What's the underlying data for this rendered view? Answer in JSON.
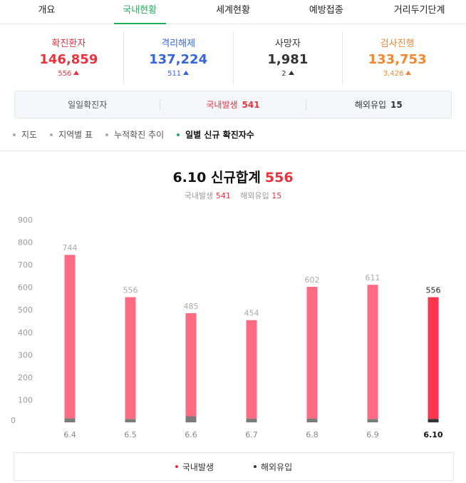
{
  "tabs": [
    {
      "label": "개요"
    },
    {
      "label": "국내현황"
    },
    {
      "label": "세계현황"
    },
    {
      "label": "예방접종"
    },
    {
      "label": "거리두기단계"
    }
  ],
  "stats": [
    {
      "label": "확진환자",
      "value": "146,859",
      "change": "556",
      "color": "#e8333f"
    },
    {
      "label": "격리해제",
      "value": "137,224",
      "change": "511",
      "color": "#3565dc"
    },
    {
      "label": "사망자",
      "value": "1,981",
      "change": "2",
      "color": "#333333"
    },
    {
      "label": "검사진행",
      "value": "133,753",
      "change": "3,426",
      "color": "#f4872c"
    }
  ],
  "daily": {
    "label": "일일확진자",
    "domestic_label": "국내발생",
    "domestic_value": "541",
    "overseas_label": "해외유입",
    "overseas_value": "15"
  },
  "views": [
    {
      "label": "지도"
    },
    {
      "label": "지역별 표"
    },
    {
      "label": "누적확진 추이"
    },
    {
      "label": "일별 신규 확진자수"
    }
  ],
  "headline": {
    "date_title": "6.10 신규합계",
    "sum": "556",
    "domestic_label": "국내발생",
    "domestic_value": "541",
    "overseas_label": "해외유입",
    "overseas_value": "15"
  },
  "colors": {
    "domestic": "#ff6b82",
    "domestic_highlight": "#ff354f",
    "overseas": "#7b7b7b",
    "overseas_highlight": "#333333"
  },
  "chart_data": {
    "type": "bar",
    "stacked": true,
    "categories": [
      "6.4",
      "6.5",
      "6.6",
      "6.7",
      "6.8",
      "6.9",
      "6.10"
    ],
    "series": [
      {
        "name": "국내발생",
        "values": [
          726,
          541,
          458,
          437,
          585,
          596,
          541
        ]
      },
      {
        "name": "해외유입",
        "values": [
          18,
          15,
          27,
          17,
          17,
          15,
          15
        ]
      }
    ],
    "totals": [
      744,
      556,
      485,
      454,
      602,
      611,
      556
    ],
    "y_ticks": [
      0,
      100,
      200,
      300,
      400,
      500,
      600,
      700,
      800,
      900
    ],
    "ylim": [
      0,
      900
    ],
    "highlight_index": 6,
    "grid": false,
    "legend_position": "bottom"
  },
  "legend": [
    {
      "label": "국내발생",
      "color": "#e8333f"
    },
    {
      "label": "해외유입",
      "color": "#333333"
    }
  ]
}
